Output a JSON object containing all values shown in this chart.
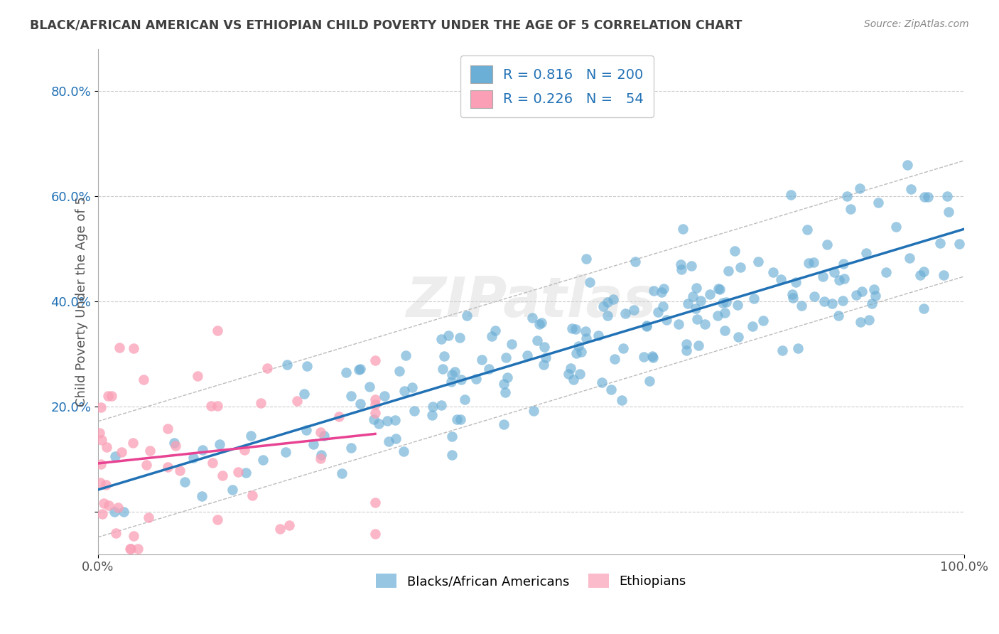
{
  "title": "BLACK/AFRICAN AMERICAN VS ETHIOPIAN CHILD POVERTY UNDER THE AGE OF 5 CORRELATION CHART",
  "source": "Source: ZipAtlas.com",
  "ylabel": "Child Poverty Under the Age of 5",
  "xlim": [
    0,
    1.0
  ],
  "ylim": [
    -0.08,
    0.88
  ],
  "ytick_positions": [
    0.0,
    0.2,
    0.4,
    0.6,
    0.8
  ],
  "ytick_labels": [
    "",
    "20.0%",
    "40.0%",
    "60.0%",
    "80.0%"
  ],
  "blue_R": 0.816,
  "blue_N": 200,
  "pink_R": 0.226,
  "pink_N": 54,
  "blue_color": "#6baed6",
  "pink_color": "#fa9fb5",
  "blue_line_color": "#2171b5",
  "pink_line_color": "#e84393",
  "legend_text_color": "#2171b5",
  "watermark": "ZIPatlas",
  "background_color": "#ffffff",
  "grid_color": "#cccccc",
  "title_color": "#404040",
  "seed": 42
}
